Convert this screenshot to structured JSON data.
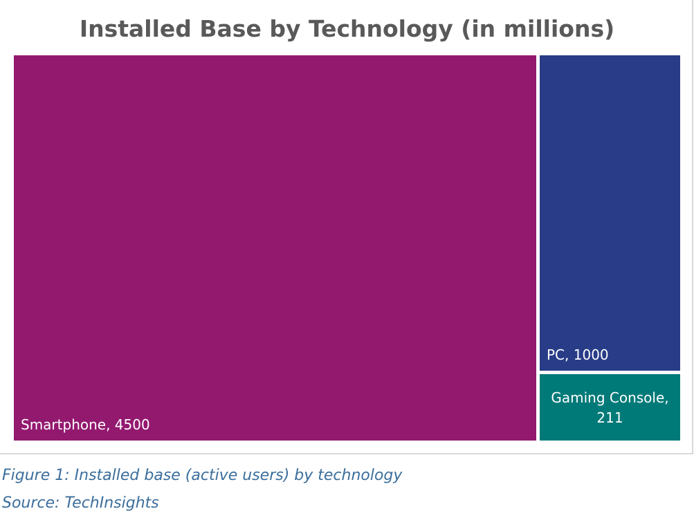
{
  "chart_data": {
    "type": "treemap",
    "title": "Installed Base by Technology (in millions)",
    "items": [
      {
        "name": "Smartphone",
        "value": 4500,
        "label": "Smartphone, 4500",
        "color": "#93196f"
      },
      {
        "name": "PC",
        "value": 1000,
        "label": "PC, 1000",
        "color": "#283c87"
      },
      {
        "name": "Gaming Console",
        "value": 211,
        "label_line1": "Gaming Console,",
        "label_line2": "211",
        "color": "#007a78"
      }
    ]
  },
  "caption": "Figure 1: Installed base (active users) by technology",
  "source": "Source: TechInsights"
}
